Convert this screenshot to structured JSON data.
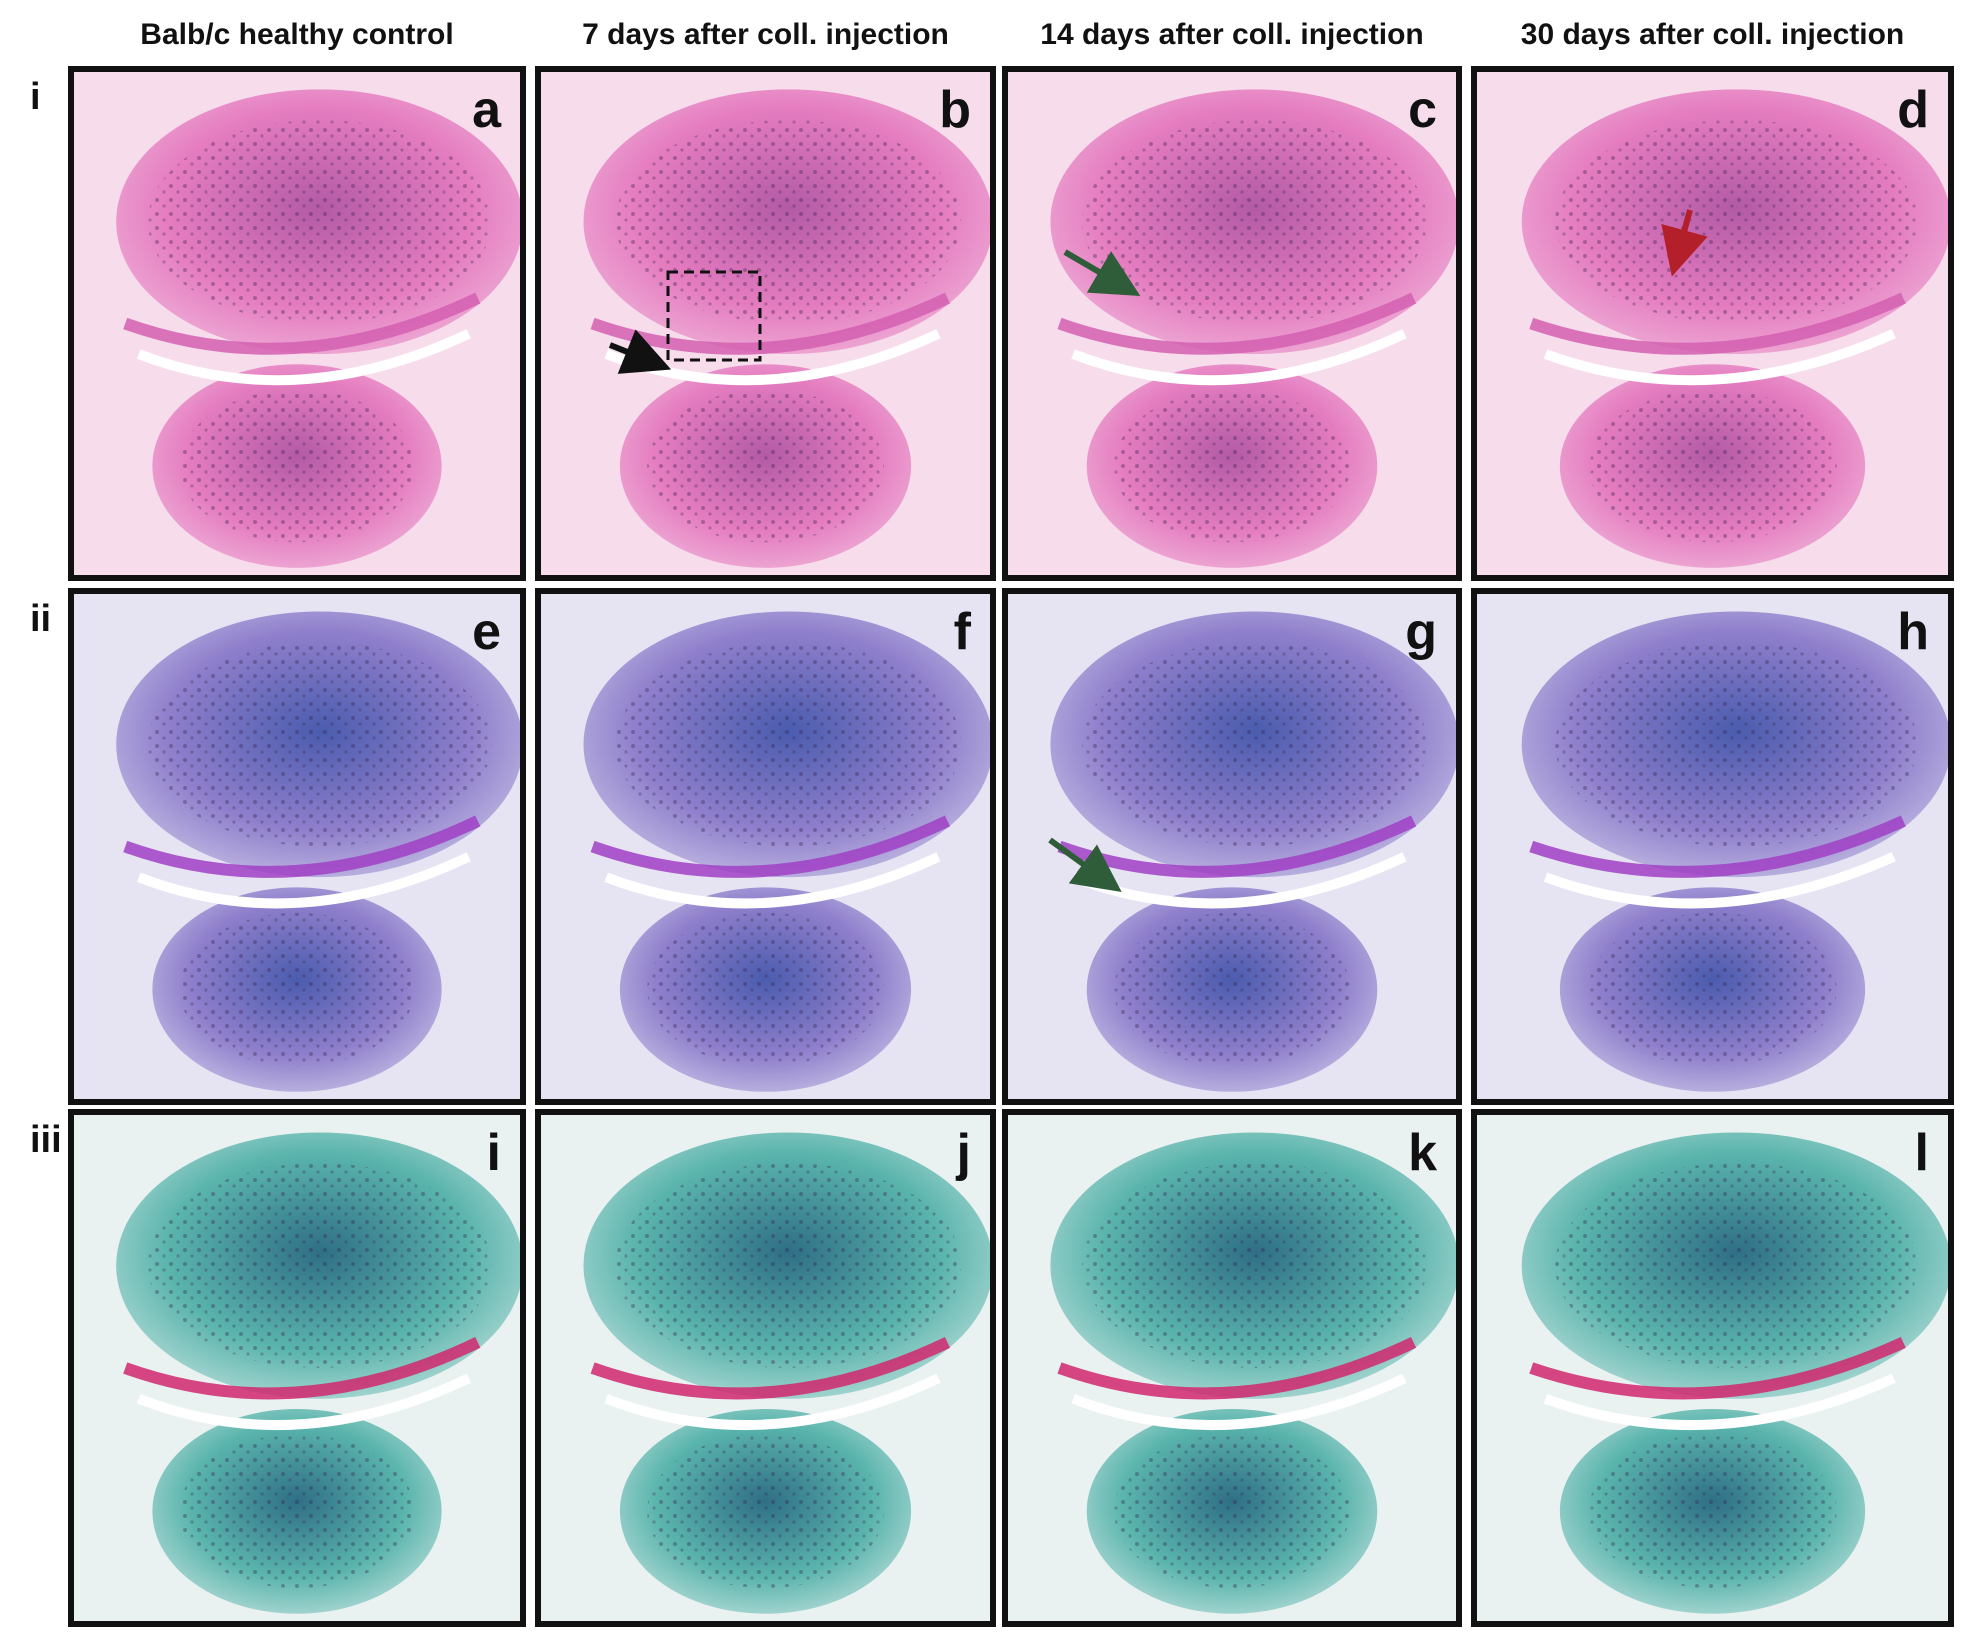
{
  "column_headers": [
    "Balb/c healthy control",
    "7 days after coll. injection",
    "14 days after coll. injection",
    "30 days after coll. injection"
  ],
  "row_labels": [
    "i",
    "ii",
    "iii"
  ],
  "panels": [
    [
      "a",
      "b",
      "c",
      "d"
    ],
    [
      "e",
      "f",
      "g",
      "h"
    ],
    [
      "i",
      "j",
      "k",
      "l"
    ]
  ]
}
